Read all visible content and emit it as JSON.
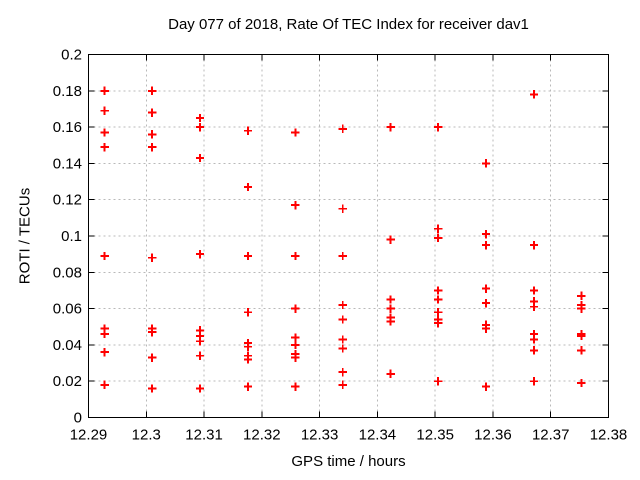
{
  "window": {
    "background": "#ffffff",
    "text_color": "#000000"
  },
  "chart_data": {
    "type": "scatter",
    "title": "Day 077 of 2018, Rate Of TEC Index for receiver dav1",
    "xlabel": "GPS time / hours",
    "ylabel": "ROTI / TECUs",
    "xlim": [
      12.29,
      12.38
    ],
    "ylim": [
      0,
      0.2
    ],
    "x_ticks": [
      12.29,
      12.3,
      12.31,
      12.32,
      12.33,
      12.34,
      12.35,
      12.36,
      12.37,
      12.38
    ],
    "x_tick_labels": [
      "12.29",
      "12.3",
      "12.31",
      "12.32",
      "12.33",
      "12.34",
      "12.35",
      "12.36",
      "12.37",
      "12.38"
    ],
    "y_ticks": [
      0,
      0.02,
      0.04,
      0.06,
      0.08,
      0.1,
      0.12,
      0.14,
      0.16,
      0.18,
      0.2
    ],
    "y_tick_labels": [
      "0",
      "0.02",
      "0.04",
      "0.06",
      "0.08",
      "0.1",
      "0.12",
      "0.14",
      "0.16",
      "0.18",
      "0.2"
    ],
    "grid": true,
    "legend": "none",
    "marker": "plus",
    "marker_color": "#ff0000",
    "grid_color": "#b9b9b9",
    "border_color": "#000000",
    "points": [
      [
        12.2928,
        0.18
      ],
      [
        12.2928,
        0.169
      ],
      [
        12.2928,
        0.157
      ],
      [
        12.2928,
        0.149
      ],
      [
        12.2928,
        0.089
      ],
      [
        12.2928,
        0.049
      ],
      [
        12.2928,
        0.046
      ],
      [
        12.2928,
        0.036
      ],
      [
        12.2928,
        0.018
      ],
      [
        12.301,
        0.18
      ],
      [
        12.301,
        0.168
      ],
      [
        12.301,
        0.156
      ],
      [
        12.301,
        0.149
      ],
      [
        12.301,
        0.088
      ],
      [
        12.301,
        0.049
      ],
      [
        12.301,
        0.047
      ],
      [
        12.301,
        0.033
      ],
      [
        12.301,
        0.016
      ],
      [
        12.3093,
        0.165
      ],
      [
        12.3093,
        0.16
      ],
      [
        12.3093,
        0.143
      ],
      [
        12.3093,
        0.09
      ],
      [
        12.3093,
        0.048
      ],
      [
        12.3093,
        0.045
      ],
      [
        12.3093,
        0.042
      ],
      [
        12.3093,
        0.034
      ],
      [
        12.3093,
        0.016
      ],
      [
        12.3176,
        0.158
      ],
      [
        12.3176,
        0.127
      ],
      [
        12.3176,
        0.089
      ],
      [
        12.3176,
        0.058
      ],
      [
        12.3176,
        0.041
      ],
      [
        12.3176,
        0.039
      ],
      [
        12.3176,
        0.034
      ],
      [
        12.3176,
        0.032
      ],
      [
        12.3176,
        0.017
      ],
      [
        12.3258,
        0.157
      ],
      [
        12.3258,
        0.117
      ],
      [
        12.3258,
        0.089
      ],
      [
        12.3258,
        0.06
      ],
      [
        12.3258,
        0.044
      ],
      [
        12.3258,
        0.04
      ],
      [
        12.3258,
        0.035
      ],
      [
        12.3258,
        0.033
      ],
      [
        12.3258,
        0.017
      ],
      [
        12.334,
        0.159
      ],
      [
        12.334,
        0.115
      ],
      [
        12.334,
        0.089
      ],
      [
        12.334,
        0.062
      ],
      [
        12.334,
        0.054
      ],
      [
        12.334,
        0.043
      ],
      [
        12.334,
        0.038
      ],
      [
        12.334,
        0.025
      ],
      [
        12.334,
        0.018
      ],
      [
        12.3423,
        0.16
      ],
      [
        12.3423,
        0.098
      ],
      [
        12.3423,
        0.065
      ],
      [
        12.3423,
        0.06
      ],
      [
        12.3423,
        0.055
      ],
      [
        12.3423,
        0.053
      ],
      [
        12.3423,
        0.024
      ],
      [
        12.3505,
        0.16
      ],
      [
        12.3505,
        0.104
      ],
      [
        12.3505,
        0.099
      ],
      [
        12.3505,
        0.07
      ],
      [
        12.3505,
        0.065
      ],
      [
        12.3505,
        0.058
      ],
      [
        12.3505,
        0.054
      ],
      [
        12.3505,
        0.052
      ],
      [
        12.3505,
        0.02
      ],
      [
        12.3588,
        0.14
      ],
      [
        12.3588,
        0.101
      ],
      [
        12.3588,
        0.095
      ],
      [
        12.3588,
        0.071
      ],
      [
        12.3588,
        0.063
      ],
      [
        12.3588,
        0.051
      ],
      [
        12.3588,
        0.049
      ],
      [
        12.3588,
        0.017
      ],
      [
        12.3671,
        0.178
      ],
      [
        12.3671,
        0.095
      ],
      [
        12.3671,
        0.07
      ],
      [
        12.3671,
        0.064
      ],
      [
        12.3671,
        0.061
      ],
      [
        12.3671,
        0.046
      ],
      [
        12.3671,
        0.043
      ],
      [
        12.3671,
        0.037
      ],
      [
        12.3671,
        0.02
      ],
      [
        12.3753,
        0.067
      ],
      [
        12.3753,
        0.062
      ],
      [
        12.3753,
        0.06
      ],
      [
        12.3753,
        0.046
      ],
      [
        12.3753,
        0.045
      ],
      [
        12.3753,
        0.037
      ],
      [
        12.3753,
        0.019
      ]
    ]
  }
}
